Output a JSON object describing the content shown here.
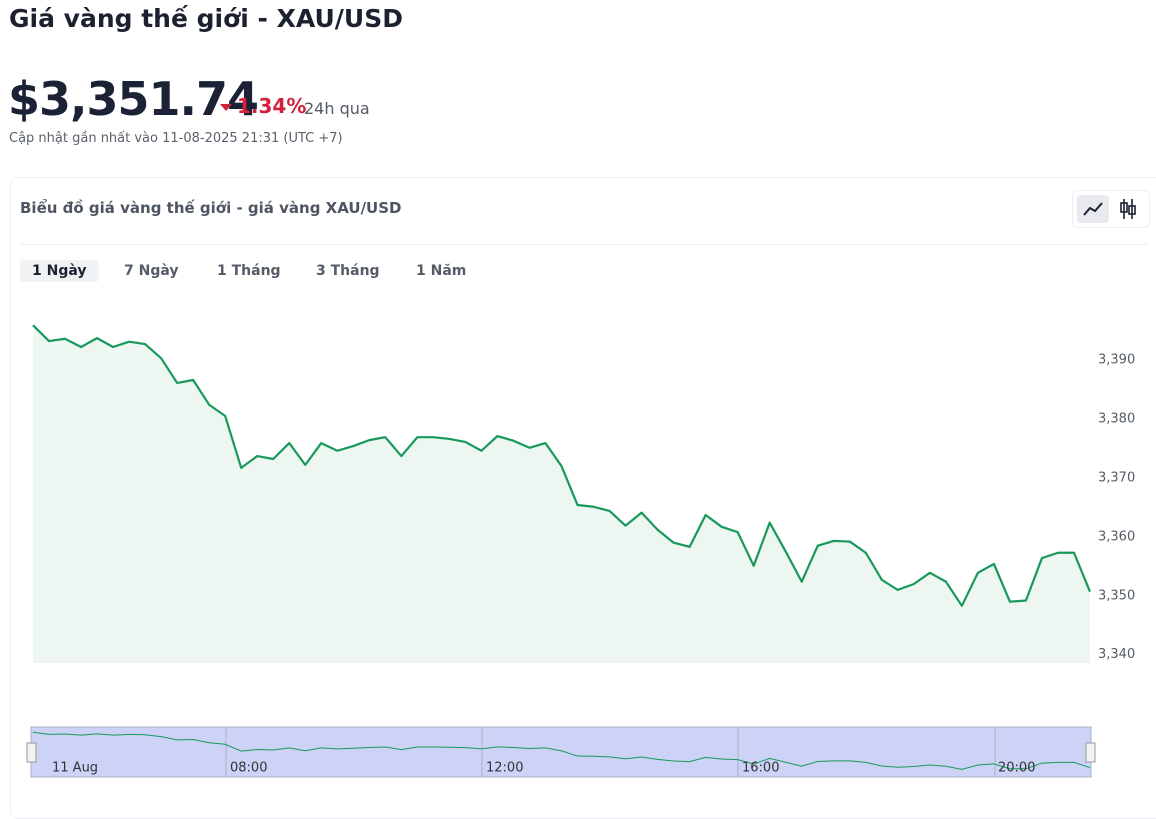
{
  "header": {
    "title": "Giá vàng thế giới - XAU/USD",
    "price": "$3,351.74",
    "change": "1.34%",
    "period": "24h qua",
    "updated": "Cập nhật gần nhất vào 11-08-2025 21:31 (UTC +7)"
  },
  "card": {
    "title": "Biểu đồ giá vàng thế giới - giá vàng XAU/USD",
    "tabs": [
      "1 Ngày",
      "7 Ngày",
      "1 Tháng",
      "3 Tháng",
      "1 Năm"
    ]
  },
  "navigator": {
    "labels": [
      "11 Aug",
      "08:00",
      "12:00",
      "16:00",
      "20:00"
    ]
  },
  "chart_data": {
    "type": "area",
    "color": "#17995a",
    "fill": "#edf6f0",
    "grid": false,
    "ylim": [
      3338.6,
      3400
    ],
    "yticks": [
      {
        "value": 3340,
        "label": "3,340"
      },
      {
        "value": 3350,
        "label": "3,350"
      },
      {
        "value": 3360,
        "label": "3,360"
      },
      {
        "value": 3370,
        "label": "3,370"
      },
      {
        "value": 3380,
        "label": "3,380"
      },
      {
        "value": 3390,
        "label": "3,390"
      }
    ],
    "values": [
      3395.9,
      3393.2,
      3393.6,
      3392.2,
      3393.7,
      3392.2,
      3393.1,
      3392.7,
      3390.3,
      3386.1,
      3386.6,
      3382.4,
      3380.5,
      3371.7,
      3373.7,
      3373.2,
      3375.9,
      3372.2,
      3375.9,
      3374.6,
      3375.4,
      3376.4,
      3376.9,
      3373.7,
      3376.9,
      3376.9,
      3376.6,
      3376.1,
      3374.6,
      3377.1,
      3376.3,
      3375.1,
      3375.9,
      3372.0,
      3365.4,
      3365.1,
      3364.4,
      3361.9,
      3364.1,
      3361.2,
      3359.0,
      3358.3,
      3363.7,
      3361.7,
      3360.8,
      3355.1,
      3362.4,
      3357.5,
      3352.4,
      3358.5,
      3359.3,
      3359.2,
      3357.3,
      3352.7,
      3351.0,
      3352.0,
      3353.9,
      3352.4,
      3348.3,
      3353.9,
      3355.4,
      3349.0,
      3349.2,
      3356.4,
      3357.3,
      3357.3,
      3350.7
    ]
  }
}
